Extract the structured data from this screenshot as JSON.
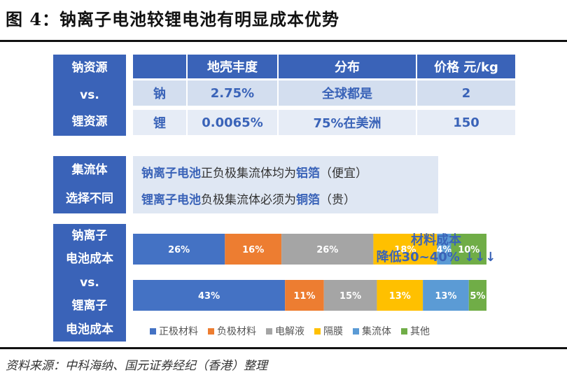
{
  "title": "图 4：钠离子电池较锂电池有明显成本优势",
  "source": "资料来源：中科海纳、国元证券经纪（香港）整理",
  "side_labels": {
    "resource": [
      "钠资源",
      "vs.",
      "锂资源"
    ],
    "collector": [
      "集流体",
      "选择不同"
    ],
    "cost": [
      "钠离子",
      "电池成本",
      "vs.",
      "锂离子",
      "电池成本"
    ]
  },
  "table": {
    "headers": [
      "地壳丰度",
      "分布",
      "价格 元/kg"
    ],
    "rows": [
      {
        "element": "钠",
        "abundance": "2.75%",
        "distribution": "全球都是",
        "price": "2"
      },
      {
        "element": "锂",
        "abundance": "0.0065%",
        "distribution": "75%在美洲",
        "price": "150"
      }
    ]
  },
  "collector": {
    "line1": {
      "subject": "钠离子电池",
      "text": "正负极集流体均为",
      "material": "铝箔",
      "note": "（便宜）"
    },
    "line2": {
      "subject": "锂离子电池",
      "text": "负极集流体必须为",
      "material": "铜箔",
      "note": "（贵）"
    }
  },
  "cost_note": [
    "材料成本",
    "降低30~40% ↓↓↓"
  ],
  "colors": {
    "blue": "#3a63b8",
    "正极材料": "#4472c4",
    "负极材料": "#ed7d31",
    "电解液": "#a5a5a5",
    "隔膜": "#ffc000",
    "集流体": "#5b9bd5",
    "其他": "#70ad47"
  },
  "chart_data": {
    "type": "bar",
    "orientation": "horizontal",
    "stacked": true,
    "categories": [
      "钠离子电池成本",
      "锂离子电池成本"
    ],
    "series": [
      {
        "name": "正极材料",
        "values": [
          26,
          43
        ],
        "labels": [
          "26%",
          "43%"
        ]
      },
      {
        "name": "负极材料",
        "values": [
          16,
          11
        ],
        "labels": [
          "16%",
          "11%"
        ]
      },
      {
        "name": "电解液",
        "values": [
          26,
          15
        ],
        "labels": [
          "26%",
          "15%"
        ]
      },
      {
        "name": "隔膜",
        "values": [
          18,
          13
        ],
        "labels": [
          "18%",
          "13%"
        ]
      },
      {
        "name": "集流体",
        "values": [
          4,
          13
        ],
        "labels": [
          "4%",
          "13%"
        ]
      },
      {
        "name": "其他",
        "values": [
          10,
          5
        ],
        "labels": [
          "10%",
          "5%"
        ]
      }
    ],
    "legend": "bottom",
    "bar_scale": [
      1.0,
      1.0
    ]
  }
}
